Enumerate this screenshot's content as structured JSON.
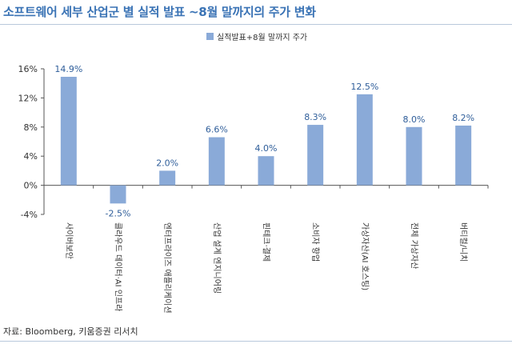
{
  "title": "소프트웨어 세부 산업군 별 실적 발표 ~8월 말까지의 주가 변화",
  "source": "자료: Bloomberg, 키움증권 리서치",
  "colors": {
    "bar": "#8aaad8",
    "title": "#3a73b5",
    "axis": "#555555",
    "label": "#2f5e9a"
  },
  "chart_data": {
    "type": "bar",
    "categories": [
      "사이버보안",
      "클라우드 데이터·AI 인프라",
      "엔터프라이즈 애플리케이션",
      "산업 설계 엔지니어링",
      "핀테크·결제",
      "소비자 향업",
      "가상자산(AI 호스팅)",
      "전체 가상자산",
      "버티컬/니치"
    ],
    "series": [
      {
        "name": "실적발표+8월 말까지 주가",
        "values": [
          14.9,
          -2.5,
          2.0,
          6.6,
          4.0,
          8.3,
          12.5,
          8.0,
          8.2
        ]
      }
    ],
    "value_labels": [
      "14.9%",
      "-2.5%",
      "2.0%",
      "6.6%",
      "4.0%",
      "8.3%",
      "12.5%",
      "8.0%",
      "8.2%"
    ],
    "y_ticks": [
      "-4%",
      "0%",
      "4%",
      "8%",
      "12%",
      "16%"
    ],
    "ylim": [
      -4,
      16
    ],
    "legend": "top-center",
    "grid": false
  }
}
